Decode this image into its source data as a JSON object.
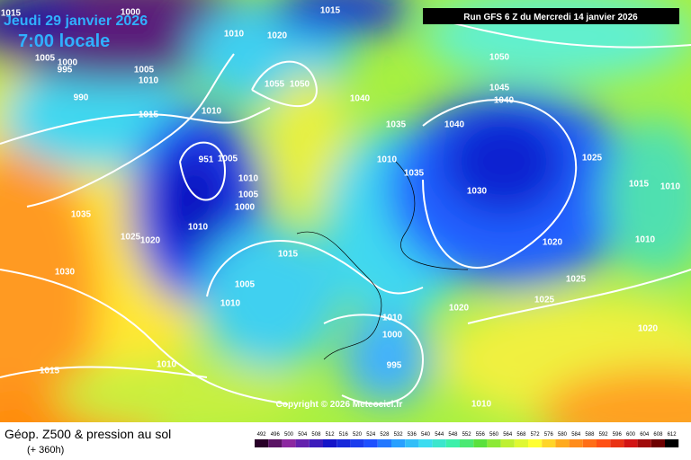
{
  "header": {
    "date": "Jeudi 29 janvier 2026",
    "time": "7:00 locale",
    "run": "Run GFS 6 Z du Mercredi 14 janvier 2026"
  },
  "copyright": "Copyright © 2026 Meteociel.fr",
  "footer": {
    "title": "Géop. Z500 & pression au sol",
    "subtitle": "(+ 360h)"
  },
  "pressure_labels": [
    1015,
    1000,
    1015,
    1010,
    1020,
    1005,
    1000,
    995,
    1005,
    1010,
    990,
    1015,
    1010,
    1055,
    1050,
    1040,
    1035,
    1050,
    1045,
    1040,
    1040,
    1025,
    1015,
    1010,
    1010,
    1035,
    1030,
    951,
    1005,
    1010,
    1005,
    1000,
    1035,
    1025,
    1020,
    1010,
    1015,
    1020,
    1010,
    1030,
    1025,
    1005,
    1010,
    1025,
    1020,
    1010,
    1000,
    995,
    1010,
    1015,
    1010,
    1020
  ],
  "colorbar": [
    492,
    496,
    500,
    504,
    508,
    512,
    516,
    520,
    524,
    528,
    532,
    536,
    540,
    544,
    548,
    552,
    556,
    560,
    564,
    568,
    572,
    576,
    580,
    584,
    588,
    592,
    596,
    600,
    604,
    608,
    612
  ]
}
